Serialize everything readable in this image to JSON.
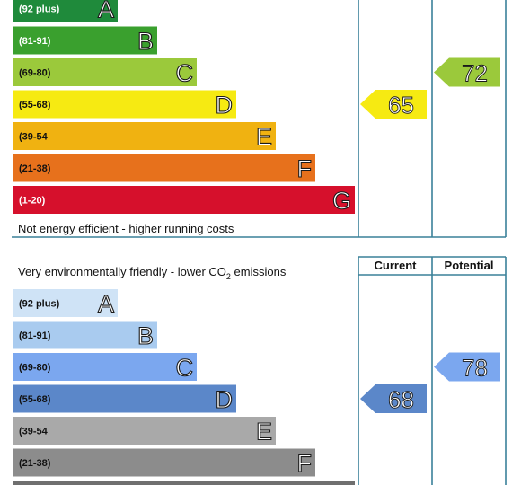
{
  "chart_data": [
    {
      "type": "bar",
      "title": "",
      "footer_note": "Not energy efficient - higher running costs",
      "bands": [
        {
          "range": "(92 plus)",
          "letter": "A",
          "color": "#1f8a3b",
          "label_dark": false
        },
        {
          "range": "(81-91)",
          "letter": "B",
          "color": "#3aa02e",
          "label_dark": false
        },
        {
          "range": "(69-80)",
          "letter": "C",
          "color": "#9bc93b",
          "label_dark": true
        },
        {
          "range": "(55-68)",
          "letter": "D",
          "color": "#f6ea12",
          "label_dark": true
        },
        {
          "range": "(39-54",
          "letter": "E",
          "color": "#f0b211",
          "label_dark": true
        },
        {
          "range": "(21-38)",
          "letter": "F",
          "color": "#e7711c",
          "label_dark": true
        },
        {
          "range": "(1-20)",
          "letter": "G",
          "color": "#d6102c",
          "label_dark": false
        }
      ],
      "current": {
        "value": 65,
        "band": "D",
        "color": "#f6ea12"
      },
      "potential": {
        "value": 72,
        "band": "C",
        "color": "#9bc93b"
      }
    },
    {
      "type": "bar",
      "title": "Very environmentally friendly - lower CO",
      "title_subscript": "2",
      "title_suffix": " emissions",
      "column_headers": {
        "current": "Current",
        "potential": "Potential"
      },
      "bands": [
        {
          "range": "(92 plus)",
          "letter": "A",
          "color": "#cfe3f6",
          "label_dark": true
        },
        {
          "range": "(81-91)",
          "letter": "B",
          "color": "#a9cbef",
          "label_dark": true
        },
        {
          "range": "(69-80)",
          "letter": "C",
          "color": "#7ba7ef",
          "label_dark": true
        },
        {
          "range": "(55-68)",
          "letter": "D",
          "color": "#5b87c9",
          "label_dark": true
        },
        {
          "range": "(39-54",
          "letter": "E",
          "color": "#a9a9a9",
          "label_dark": true
        },
        {
          "range": "(21-38)",
          "letter": "F",
          "color": "#8c8c8c",
          "label_dark": true
        },
        {
          "range": "",
          "letter": "",
          "color": "#6f6f6f",
          "label_dark": true
        }
      ],
      "current": {
        "value": 68,
        "band": "D",
        "color": "#5b87c9"
      },
      "potential": {
        "value": 78,
        "band": "C",
        "color": "#7ba7ef"
      }
    }
  ]
}
